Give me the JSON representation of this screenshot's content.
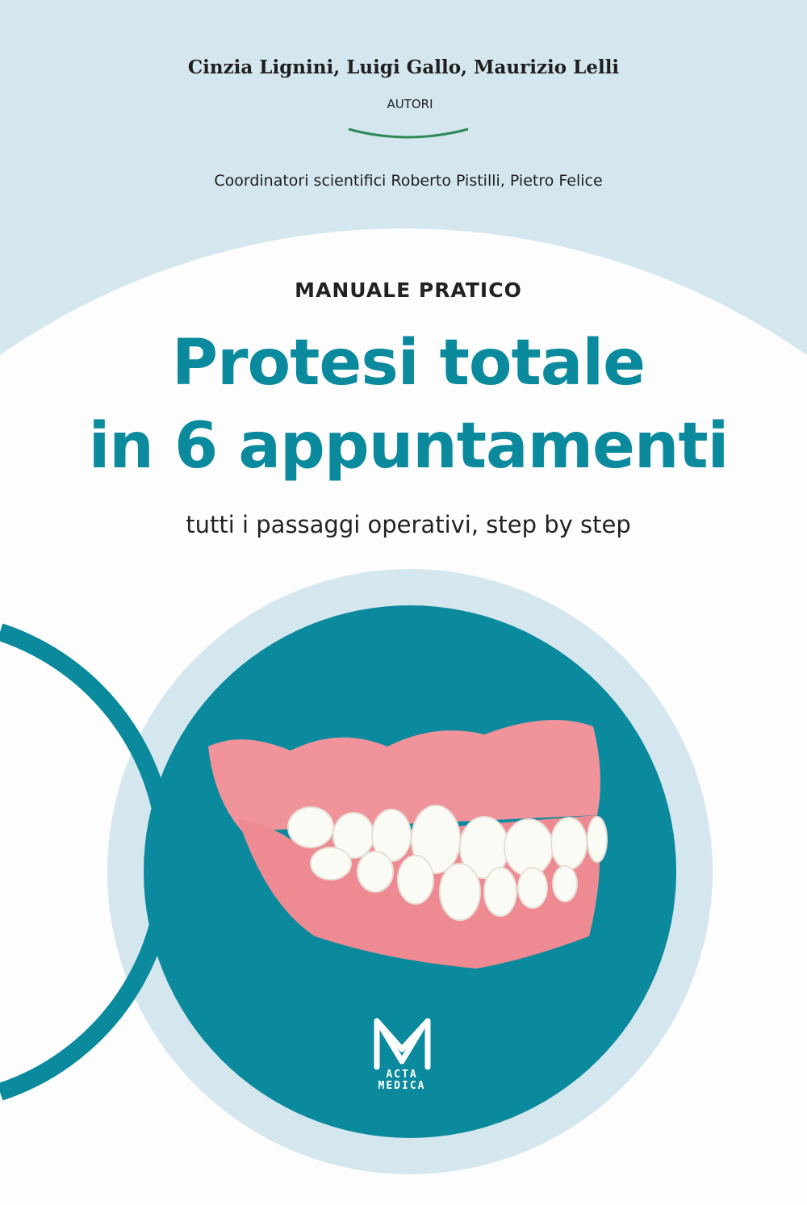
{
  "authors": "Cinzia Lignini, Luigi Gallo, Maurizio Lelli",
  "authors_label": "AUTORI",
  "coordinators": "Coordinatori scientifici Roberto Pistilli, Pietro Felice",
  "kicker": "MANUALE PRATICO",
  "title_line1": "Protesi totale",
  "title_line2": "in 6 appuntamenti",
  "subtitle": "tutti i passaggi operativi, step by step",
  "publisher": {
    "line1": "ACTA",
    "line2": "MEDICA"
  },
  "colors": {
    "teal": "#0b8a9e",
    "light_blue": "#d4e6ee",
    "accent_green": "#2e8b57",
    "gum_pink": "#f0939a"
  }
}
